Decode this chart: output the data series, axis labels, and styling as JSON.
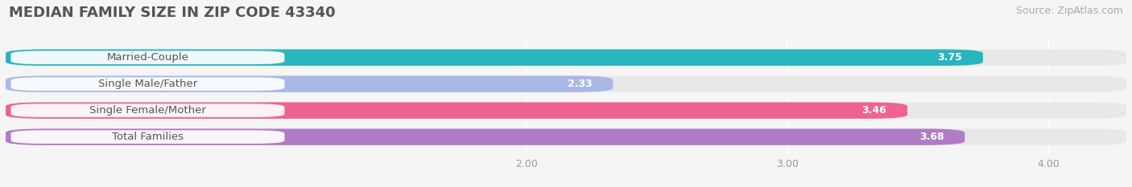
{
  "title": "MEDIAN FAMILY SIZE IN ZIP CODE 43340",
  "source": "Source: ZipAtlas.com",
  "categories": [
    "Married-Couple",
    "Single Male/Father",
    "Single Female/Mother",
    "Total Families"
  ],
  "values": [
    3.75,
    2.33,
    3.46,
    3.68
  ],
  "bar_colors": [
    "#29b5be",
    "#aab8e8",
    "#f06292",
    "#b07cc6"
  ],
  "label_bg_colors": [
    "#e8f8f8",
    "#dde4f5",
    "#fce4ec",
    "#ede0f5"
  ],
  "xlim_data": [
    0.0,
    4.3
  ],
  "xstart": 0.0,
  "xticks": [
    2.0,
    3.0,
    4.0
  ],
  "background_color": "#f5f5f5",
  "bar_bg_color": "#e8e8e8",
  "title_fontsize": 13,
  "source_fontsize": 9,
  "label_fontsize": 9.5,
  "value_fontsize": 9
}
